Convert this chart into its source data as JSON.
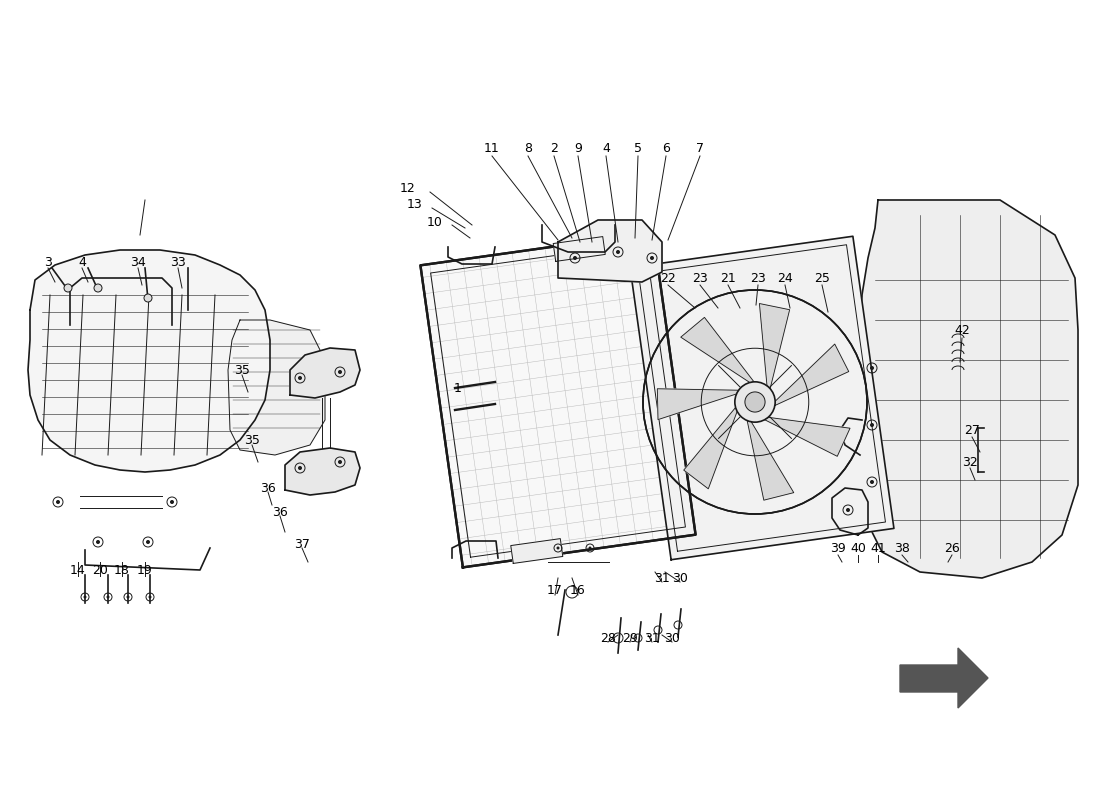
{
  "bg_color": "#ffffff",
  "line_color": "#1a1a1a",
  "watermark_color": "#c8c8c8",
  "arrow_color": "#c8b400",
  "title": "",
  "fig_width": 11.0,
  "fig_height": 8.0,
  "dpi": 100
}
